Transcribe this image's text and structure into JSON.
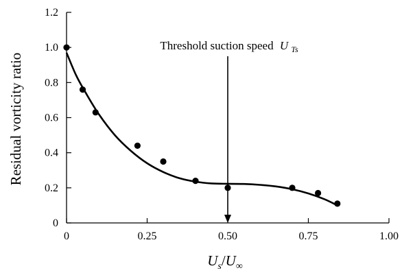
{
  "chart_data": {
    "type": "scatter",
    "xlabel": "U_s/U_∞",
    "ylabel": "Residual vorticity ratio",
    "xlim": [
      0,
      1.0
    ],
    "ylim": [
      0,
      1.2
    ],
    "xticks": [
      0,
      0.25,
      0.5,
      0.75,
      1.0
    ],
    "xtick_labels": [
      "0",
      "0.25",
      "0.50",
      "0.75",
      "1.00"
    ],
    "yticks": [
      0,
      0.2,
      0.4,
      0.6,
      0.8,
      1.0,
      1.2
    ],
    "ytick_labels": [
      "0",
      "0.2",
      "0.4",
      "0.6",
      "0.8",
      "1.0",
      "1.2"
    ],
    "grid": false,
    "series": [
      {
        "kind": "points",
        "x": [
          0.0,
          0.05,
          0.09,
          0.22,
          0.3,
          0.4,
          0.5,
          0.7,
          0.78,
          0.84
        ],
        "y": [
          1.0,
          0.76,
          0.63,
          0.44,
          0.35,
          0.24,
          0.2,
          0.2,
          0.17,
          0.11
        ]
      },
      {
        "kind": "curve",
        "x": [
          0.0,
          0.03,
          0.06,
          0.1,
          0.15,
          0.2,
          0.25,
          0.3,
          0.35,
          0.4,
          0.45,
          0.5,
          0.55,
          0.6,
          0.65,
          0.7,
          0.75,
          0.8,
          0.84
        ],
        "y": [
          0.97,
          0.84,
          0.74,
          0.62,
          0.5,
          0.41,
          0.34,
          0.29,
          0.255,
          0.235,
          0.225,
          0.223,
          0.222,
          0.217,
          0.208,
          0.192,
          0.168,
          0.135,
          0.1
        ]
      }
    ],
    "annotations": [
      {
        "id": "threshold",
        "text": "Threshold suction speed",
        "symbol": "U",
        "subscript": "Ts",
        "arrow_x": 0.5,
        "arrow_from_y": 0.95,
        "arrow_to_y": 0.0
      }
    ]
  }
}
